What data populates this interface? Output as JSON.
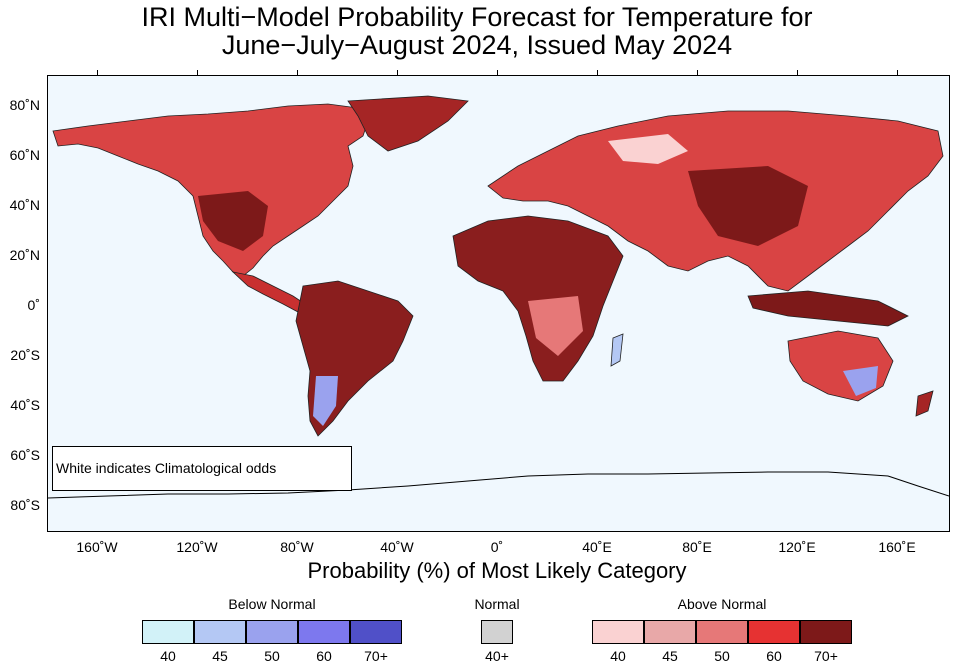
{
  "title": {
    "line1": "IRI Multi−Model Probability Forecast for Temperature for",
    "line2": "June−July−August 2024, Issued May 2024"
  },
  "map": {
    "latitude_labels": [
      "80˚N",
      "60˚N",
      "40˚N",
      "20˚N",
      "0˚",
      "20˚S",
      "40˚S",
      "60˚S",
      "80˚S"
    ],
    "longitude_labels": [
      "160˚W",
      "120˚W",
      "80˚W",
      "40˚W",
      "0˚",
      "40˚E",
      "80˚E",
      "120˚E",
      "160˚E"
    ],
    "note": "White indicates Climatological odds",
    "ocean_color": "#f0f8fe"
  },
  "legend": {
    "caption": "Probability (%) of Most Likely Category",
    "below": {
      "label": "Below Normal",
      "swatches": [
        {
          "value": "40",
          "color": "#d2f2f8"
        },
        {
          "value": "45",
          "color": "#b4c8f4"
        },
        {
          "value": "50",
          "color": "#9aa2ee"
        },
        {
          "value": "60",
          "color": "#7d78ee"
        },
        {
          "value": "70+",
          "color": "#5050c8"
        }
      ]
    },
    "normal": {
      "label": "Normal",
      "swatches": [
        {
          "value": "40+",
          "color": "#d2d2d2"
        }
      ]
    },
    "above": {
      "label": "Above Normal",
      "swatches": [
        {
          "value": "40",
          "color": "#fad2d2"
        },
        {
          "value": "45",
          "color": "#e8a8a8"
        },
        {
          "value": "50",
          "color": "#e67878"
        },
        {
          "value": "60",
          "color": "#e63232"
        },
        {
          "value": "70+",
          "color": "#7d1919"
        }
      ]
    }
  }
}
